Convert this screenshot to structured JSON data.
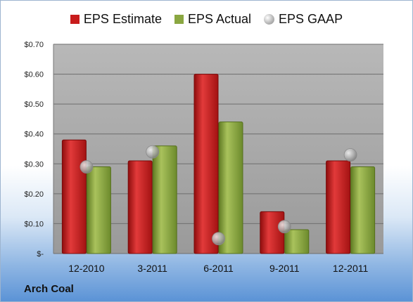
{
  "legend": {
    "estimate": "EPS Estimate",
    "actual": "EPS Actual",
    "gaap": "EPS GAAP"
  },
  "company": "Arch Coal",
  "colors": {
    "estimate": "#c81c1c",
    "actual": "#8aa741",
    "gaap": "#a9a9a9",
    "plot_background": "#a8a8a8"
  },
  "chart_data": {
    "type": "bar",
    "title": "",
    "xlabel": "",
    "ylabel": "",
    "categories": [
      "12-2010",
      "3-2011",
      "6-2011",
      "9-2011",
      "12-2011"
    ],
    "series": [
      {
        "name": "EPS Estimate",
        "values": [
          0.38,
          0.31,
          0.6,
          0.14,
          0.31
        ]
      },
      {
        "name": "EPS Actual",
        "values": [
          0.29,
          0.36,
          0.44,
          0.08,
          0.29
        ]
      },
      {
        "name": "EPS GAAP",
        "values": [
          0.29,
          0.34,
          0.05,
          0.09,
          0.33
        ],
        "marker": "circle"
      }
    ],
    "ylim": [
      0,
      0.7
    ],
    "yticks": [
      0,
      0.1,
      0.2,
      0.3,
      0.4,
      0.5,
      0.6,
      0.7
    ],
    "ytick_labels": [
      "$-",
      "$0.10",
      "$0.20",
      "$0.30",
      "$0.40",
      "$0.50",
      "$0.60",
      "$0.70"
    ],
    "grid": true,
    "legend_position": "top"
  }
}
